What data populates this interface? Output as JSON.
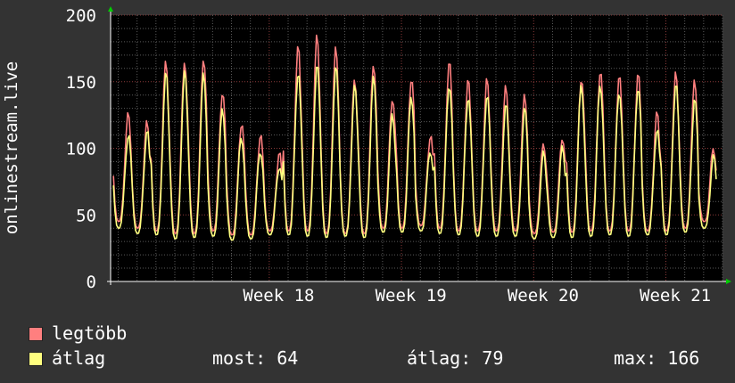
{
  "chart_data": {
    "type": "line",
    "ylabel": "onlinestream.live",
    "ylim": [
      0,
      200
    ],
    "yticks": [
      0,
      50,
      100,
      150,
      200
    ],
    "x_ticks": [
      {
        "label": "Week 18",
        "day": 7
      },
      {
        "label": "Week 19",
        "day": 14
      },
      {
        "label": "Week 20",
        "day": 21
      },
      {
        "label": "Week 21",
        "day": 28
      }
    ],
    "x_range_days": [
      -1.4,
      31.0
    ],
    "grid": true,
    "legend_position": "bottom-left",
    "series": [
      {
        "name": "legtöbb",
        "color": "#ff7f7f",
        "daily_peaks": [
          124,
          118,
          165,
          166,
          170,
          145,
          120,
          110,
          95,
          175,
          183,
          175,
          152,
          165,
          140,
          155,
          110,
          165,
          150,
          150,
          145,
          140,
          105,
          110,
          155,
          160,
          155,
          155,
          125,
          155,
          150,
          100
        ],
        "daily_troughs": [
          45,
          40,
          38,
          36,
          36,
          38,
          35,
          35,
          38,
          38,
          38,
          36,
          36,
          36,
          40,
          40,
          42,
          40,
          38,
          38,
          38,
          38,
          36,
          37,
          37,
          38,
          38,
          38,
          38,
          38,
          40,
          45
        ]
      },
      {
        "name": "átlag",
        "color": "#ffff7f",
        "daily_peaks": [
          110,
          112,
          155,
          156,
          155,
          130,
          110,
          100,
          88,
          158,
          163,
          160,
          145,
          152,
          125,
          140,
          100,
          150,
          140,
          140,
          132,
          128,
          95,
          100,
          148,
          150,
          145,
          148,
          115,
          148,
          135,
          92
        ],
        "daily_troughs": [
          40,
          36,
          35,
          32,
          33,
          34,
          31,
          32,
          35,
          35,
          34,
          33,
          34,
          33,
          37,
          37,
          38,
          36,
          35,
          34,
          34,
          34,
          32,
          33,
          33,
          34,
          35,
          34,
          35,
          35,
          37,
          40
        ]
      }
    ]
  },
  "legend": {
    "max_label": "legtöbb",
    "avg_label": "átlag",
    "now": "most: 64",
    "avg": "átlag: 79",
    "max": "max: 166"
  }
}
